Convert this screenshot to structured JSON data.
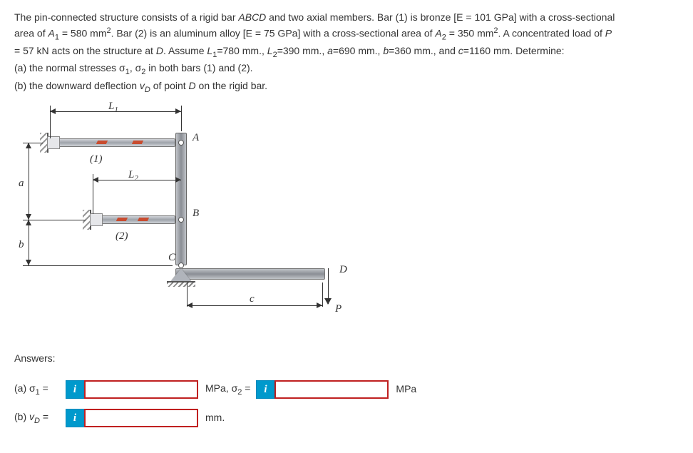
{
  "problem": {
    "line1": "The pin-connected structure consists of a rigid bar <i>ABCD</i> and two axial members. Bar (1) is bronze [E = 101 GPa] with a cross-sectional",
    "line2": "area of <i>A</i><sub>1</sub> = 580 mm<sup>2</sup>. Bar (2) is an aluminum alloy [E = 75 GPa] with a cross-sectional area of <i>A</i><sub>2</sub> = 350 mm<sup>2</sup>. A concentrated load of <i>P</i>",
    "line3": "= 57 kN acts on the structure at <i>D</i>. Assume <i>L</i><sub>1</sub>=780 mm., <i>L</i><sub>2</sub>=390 mm., <i>a</i>=690 mm., <i>b</i>=360 mm., and <i>c</i>=1160 mm. Determine:",
    "line4": "(a) the normal stresses σ<sub>1</sub>, σ<sub>2</sub> in both bars (1) and (2).",
    "line5": "(b) the downward deflection <i>v<sub>D</sub></i> of point <i>D</i> on the rigid bar."
  },
  "figure": {
    "L1": "L",
    "L1sub": "1",
    "L2": "L",
    "L2sub": "2",
    "a": "a",
    "b": "b",
    "c": "c",
    "A": "A",
    "B": "B",
    "C": "C",
    "D": "D",
    "P": "P",
    "bar1": "(1)",
    "bar2": "(2)"
  },
  "answers": {
    "heading": "Answers:",
    "a_label_pre": "(a) σ",
    "a_label_sub": "1",
    "a_label_post": " =",
    "a_unit_pre": "MPa, σ",
    "a_unit_sub": "2",
    "a_unit_post": " =",
    "a_unit_end": "MPa",
    "b_label_pre": "(b) ",
    "b_label_var": "v",
    "b_label_sub": "D",
    "b_label_post": " =",
    "b_unit": "mm."
  }
}
